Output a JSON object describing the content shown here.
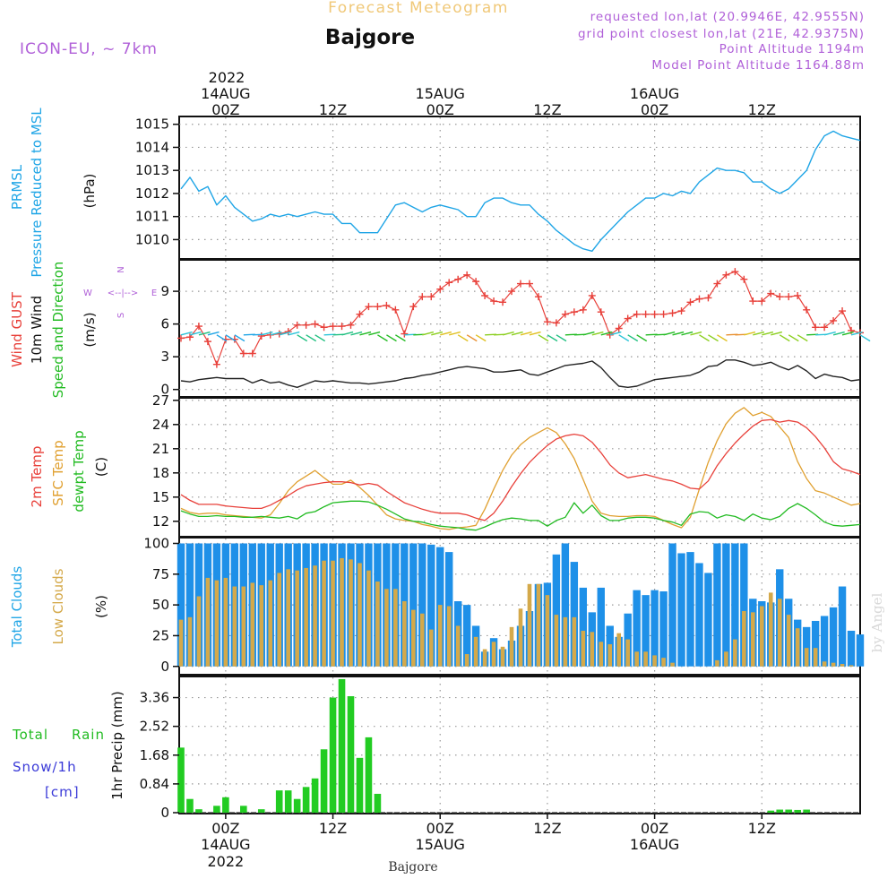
{
  "header": {
    "title": "Forecast Meteogram",
    "location": "Bajgore",
    "model": "ICON-EU, ~ 7km",
    "requested": "requested lon,lat (20.9946E, 42.9555N)",
    "gridpoint": "grid point closest lon,lat (21E, 42.9375N)",
    "point_altitude": "Point Altitude 1194m",
    "model_altitude": "Model Point Altitude 1164.88m",
    "footer_location": "Bajgore",
    "watermark": "by Angel"
  },
  "colors": {
    "pressure": "#1fa5e6",
    "gust": "#e8403a",
    "wind": "#222222",
    "temp": "#e8403a",
    "sfc": "#e0a030",
    "dewpt": "#22bb22",
    "total_clouds": "#1e90e8",
    "low_clouds": "#d4a94a",
    "rain": "#22cc22",
    "snow": "#3a3ad8",
    "title": "#f0c878",
    "meta": "#b060d8"
  },
  "time_axis": {
    "top_year": "2022",
    "top_ticks": [
      {
        "hour": 0,
        "l1": "14AUG",
        "l2": "00Z"
      },
      {
        "hour": 12,
        "l1": "",
        "l2": "12Z"
      },
      {
        "hour": 24,
        "l1": "15AUG",
        "l2": "00Z"
      },
      {
        "hour": 36,
        "l1": "",
        "l2": "12Z"
      },
      {
        "hour": 48,
        "l1": "16AUG",
        "l2": "00Z"
      },
      {
        "hour": 60,
        "l1": "",
        "l2": "12Z"
      }
    ],
    "bottom_ticks": [
      {
        "hour": 0,
        "l1": "00Z",
        "l2": "14AUG",
        "l3": "2022"
      },
      {
        "hour": 12,
        "l1": "12Z",
        "l2": "",
        "l3": ""
      },
      {
        "hour": 24,
        "l1": "00Z",
        "l2": "15AUG",
        "l3": ""
      },
      {
        "hour": 36,
        "l1": "12Z",
        "l2": "",
        "l3": ""
      },
      {
        "hour": 48,
        "l1": "00Z",
        "l2": "16AUG",
        "l3": ""
      },
      {
        "hour": 60,
        "l1": "12Z",
        "l2": "",
        "l3": ""
      }
    ],
    "start_hour": -5.2,
    "end_hour": 71
  },
  "panel_labels": {
    "pressure": {
      "l1": "PRMSL",
      "l2": "Pressure Reduced to MSL",
      "unit": "(hPa)"
    },
    "wind": {
      "l1": "Wind GUST",
      "l2": "10m Wind",
      "l3": "Speed and Direction",
      "unit": "(m/s)",
      "compass_n": "N",
      "compass_s": "S",
      "compass_w": "W",
      "compass_e": "E",
      "compass_row": "<--|-->"
    },
    "temp": {
      "l1": "2m Temp",
      "l2": "SFC Temp",
      "l3": "dewpt Temp",
      "unit": "(C)"
    },
    "clouds": {
      "l1": "Total Clouds",
      "l2": "Low Clouds",
      "unit": "(%)"
    },
    "precip": {
      "l1a": "Total",
      "l1b": "Rain",
      "l2": "Snow/1h",
      "l3": "[cm]",
      "unit": "1hr Precip (mm)"
    }
  },
  "chart_data": [
    {
      "type": "line",
      "name": "pressure",
      "ylim": [
        1009.2,
        1015.3
      ],
      "yticks": [
        "1010",
        "1011",
        "1012",
        "1013",
        "1014",
        "1015"
      ],
      "x": [
        -5,
        -4,
        -3,
        -2,
        -1,
        0,
        1,
        2,
        3,
        4,
        5,
        6,
        7,
        8,
        9,
        10,
        11,
        12,
        13,
        14,
        15,
        16,
        17,
        18,
        19,
        20,
        21,
        22,
        23,
        24,
        25,
        26,
        27,
        28,
        29,
        30,
        31,
        32,
        33,
        34,
        35,
        36,
        37,
        38,
        39,
        40,
        41,
        42,
        43,
        44,
        45,
        46,
        47,
        48,
        49,
        50,
        51,
        52,
        53,
        54,
        55,
        56,
        57,
        58,
        59,
        60,
        61,
        62,
        63,
        64,
        65,
        66,
        67,
        68,
        69,
        70,
        71
      ],
      "values": [
        1012.2,
        1012.7,
        1012.1,
        1012.3,
        1011.5,
        1011.9,
        1011.4,
        1011.1,
        1010.8,
        1010.9,
        1011.1,
        1011.0,
        1011.1,
        1011.0,
        1011.1,
        1011.2,
        1011.1,
        1011.1,
        1010.7,
        1010.7,
        1010.3,
        1010.3,
        1010.3,
        1010.9,
        1011.5,
        1011.6,
        1011.4,
        1011.2,
        1011.4,
        1011.5,
        1011.4,
        1011.3,
        1011.0,
        1011.0,
        1011.6,
        1011.8,
        1011.8,
        1011.6,
        1011.5,
        1011.5,
        1011.1,
        1010.8,
        1010.4,
        1010.1,
        1009.8,
        1009.6,
        1009.5,
        1010.0,
        1010.4,
        1010.8,
        1011.2,
        1011.5,
        1011.8,
        1011.8,
        1012.0,
        1011.9,
        1012.1,
        1012.0,
        1012.5,
        1012.8,
        1013.1,
        1013.0,
        1013.0,
        1012.9,
        1012.5,
        1012.5,
        1012.2,
        1012.0,
        1012.2,
        1012.6,
        1013.0,
        1013.9,
        1014.5,
        1014.7,
        1014.5,
        1014.4,
        1014.3
      ]
    },
    {
      "type": "line",
      "name": "wind",
      "ylim": [
        -0.6,
        11.8
      ],
      "yticks": [
        "0",
        "3",
        "6",
        "9"
      ],
      "x": [
        -5,
        -4,
        -3,
        -2,
        -1,
        0,
        1,
        2,
        3,
        4,
        5,
        6,
        7,
        8,
        9,
        10,
        11,
        12,
        13,
        14,
        15,
        16,
        17,
        18,
        19,
        20,
        21,
        22,
        23,
        24,
        25,
        26,
        27,
        28,
        29,
        30,
        31,
        32,
        33,
        34,
        35,
        36,
        37,
        38,
        39,
        40,
        41,
        42,
        43,
        44,
        45,
        46,
        47,
        48,
        49,
        50,
        51,
        52,
        53,
        54,
        55,
        56,
        57,
        58,
        59,
        60,
        61,
        62,
        63,
        64,
        65,
        66,
        67,
        68,
        69,
        70,
        71
      ],
      "gust": [
        4.7,
        4.8,
        5.8,
        4.4,
        2.3,
        4.6,
        4.6,
        3.3,
        3.3,
        4.9,
        5.0,
        5.1,
        5.3,
        5.9,
        5.9,
        6.0,
        5.7,
        5.8,
        5.8,
        5.9,
        6.9,
        7.6,
        7.6,
        7.7,
        7.3,
        5.1,
        7.6,
        8.5,
        8.5,
        9.2,
        9.8,
        10.1,
        10.5,
        9.9,
        8.6,
        8.1,
        8.0,
        9.0,
        9.7,
        9.7,
        8.5,
        6.2,
        6.1,
        6.9,
        7.1,
        7.3,
        8.6,
        7.1,
        5.0,
        5.6,
        6.5,
        6.9,
        6.9,
        6.9,
        6.9,
        7.0,
        7.2,
        8.0,
        8.3,
        8.4,
        9.7,
        10.5,
        10.8,
        10.1,
        8.1,
        8.1,
        8.8,
        8.5,
        8.5,
        8.6,
        7.3,
        5.7,
        5.7,
        6.3,
        7.2,
        5.4,
        5.2
      ],
      "speed": [
        0.8,
        0.7,
        0.9,
        1.0,
        1.1,
        1.0,
        1.0,
        1.0,
        0.6,
        0.9,
        0.6,
        0.7,
        0.4,
        0.2,
        0.5,
        0.8,
        0.7,
        0.8,
        0.7,
        0.6,
        0.6,
        0.5,
        0.6,
        0.7,
        0.8,
        1.0,
        1.1,
        1.3,
        1.4,
        1.6,
        1.8,
        2.0,
        2.1,
        2.0,
        1.9,
        1.6,
        1.6,
        1.7,
        1.8,
        1.4,
        1.3,
        1.6,
        1.9,
        2.2,
        2.3,
        2.4,
        2.6,
        2.0,
        1.1,
        0.3,
        0.2,
        0.3,
        0.6,
        0.9,
        1.0,
        1.1,
        1.2,
        1.3,
        1.6,
        2.1,
        2.2,
        2.7,
        2.7,
        2.5,
        2.2,
        2.3,
        2.5,
        2.1,
        1.8,
        2.2,
        1.7,
        1.0,
        1.4,
        1.2,
        1.1,
        0.8,
        0.9
      ]
    },
    {
      "type": "line",
      "name": "temperature",
      "ylim": [
        10.2,
        27.2
      ],
      "yticks": [
        "12",
        "15",
        "18",
        "21",
        "24",
        "27"
      ],
      "x": [
        -5,
        -4,
        -3,
        -2,
        -1,
        0,
        1,
        2,
        3,
        4,
        5,
        6,
        7,
        8,
        9,
        10,
        11,
        12,
        13,
        14,
        15,
        16,
        17,
        18,
        19,
        20,
        21,
        22,
        23,
        24,
        25,
        26,
        27,
        28,
        29,
        30,
        31,
        32,
        33,
        34,
        35,
        36,
        37,
        38,
        39,
        40,
        41,
        42,
        43,
        44,
        45,
        46,
        47,
        48,
        49,
        50,
        51,
        52,
        53,
        54,
        55,
        56,
        57,
        58,
        59,
        60,
        61,
        62,
        63,
        64,
        65,
        66,
        67,
        68,
        69,
        70,
        71
      ],
      "temp_2m": [
        15.3,
        14.6,
        14.1,
        14.1,
        14.1,
        13.9,
        13.8,
        13.7,
        13.6,
        13.6,
        14.0,
        14.6,
        15.2,
        15.9,
        16.4,
        16.6,
        16.8,
        16.9,
        16.9,
        16.8,
        16.5,
        16.7,
        16.5,
        15.7,
        15.0,
        14.3,
        13.9,
        13.5,
        13.2,
        13.0,
        13.0,
        13.0,
        12.8,
        12.4,
        12.1,
        13.0,
        14.5,
        16.3,
        17.9,
        19.3,
        20.4,
        21.4,
        22.2,
        22.6,
        22.8,
        22.6,
        21.8,
        20.5,
        19.0,
        18.0,
        17.4,
        17.6,
        17.8,
        17.5,
        17.2,
        17.0,
        16.6,
        16.1,
        16.0,
        17.0,
        18.9,
        20.4,
        21.7,
        22.8,
        23.8,
        24.5,
        24.6,
        24.3,
        24.5,
        24.3,
        23.6,
        22.5,
        21.1,
        19.4,
        18.5,
        18.2,
        17.8
      ],
      "sfc": [
        13.6,
        13.1,
        12.9,
        13.0,
        13.0,
        12.8,
        12.7,
        12.6,
        12.5,
        12.4,
        12.8,
        14.2,
        15.8,
        16.9,
        17.6,
        18.3,
        17.4,
        16.6,
        16.6,
        17.1,
        16.2,
        15.2,
        14.0,
        12.8,
        12.3,
        12.1,
        12.0,
        11.6,
        11.4,
        11.1,
        11.0,
        11.2,
        11.3,
        11.5,
        13.5,
        16.0,
        18.3,
        20.2,
        21.5,
        22.4,
        23.0,
        23.6,
        23.0,
        21.6,
        19.8,
        17.2,
        14.5,
        13.0,
        12.7,
        12.6,
        12.6,
        12.7,
        12.7,
        12.6,
        12.1,
        11.6,
        11.2,
        12.5,
        16.0,
        19.3,
        22.0,
        24.1,
        25.4,
        26.1,
        25.1,
        25.5,
        25.0,
        23.7,
        22.4,
        19.4,
        17.3,
        15.8,
        15.5,
        15.0,
        14.5,
        14.0,
        14.2
      ],
      "dewpt": [
        13.3,
        12.9,
        12.6,
        12.6,
        12.7,
        12.6,
        12.6,
        12.5,
        12.5,
        12.6,
        12.5,
        12.4,
        12.6,
        12.3,
        13.0,
        13.2,
        13.8,
        14.3,
        14.4,
        14.5,
        14.5,
        14.4,
        14.0,
        13.5,
        12.9,
        12.3,
        12.0,
        11.9,
        11.6,
        11.4,
        11.3,
        11.2,
        11.0,
        10.9,
        11.3,
        11.8,
        12.2,
        12.4,
        12.3,
        12.1,
        12.1,
        11.4,
        12.1,
        12.5,
        14.3,
        13.0,
        14.0,
        12.7,
        12.1,
        12.1,
        12.4,
        12.5,
        12.5,
        12.4,
        12.1,
        11.9,
        11.5,
        12.9,
        13.2,
        13.1,
        12.4,
        12.8,
        12.6,
        12.1,
        12.9,
        12.4,
        12.2,
        12.6,
        13.6,
        14.2,
        13.6,
        12.8,
        11.9,
        11.5,
        11.4,
        11.5,
        11.6
      ]
    },
    {
      "type": "bar",
      "name": "clouds",
      "ylim": [
        -6,
        104
      ],
      "yticks": [
        "0",
        "25",
        "50",
        "75",
        "100"
      ],
      "x": [
        -5,
        -4,
        -3,
        -2,
        -1,
        0,
        1,
        2,
        3,
        4,
        5,
        6,
        7,
        8,
        9,
        10,
        11,
        12,
        13,
        14,
        15,
        16,
        17,
        18,
        19,
        20,
        21,
        22,
        23,
        24,
        25,
        26,
        27,
        28,
        29,
        30,
        31,
        32,
        33,
        34,
        35,
        36,
        37,
        38,
        39,
        40,
        41,
        42,
        43,
        44,
        45,
        46,
        47,
        48,
        49,
        50,
        51,
        52,
        53,
        54,
        55,
        56,
        57,
        58,
        59,
        60,
        61,
        62,
        63,
        64,
        65,
        66,
        67,
        68,
        69,
        70,
        71
      ],
      "total": [
        100,
        100,
        100,
        100,
        100,
        100,
        100,
        100,
        100,
        100,
        100,
        100,
        100,
        100,
        100,
        100,
        100,
        100,
        100,
        100,
        100,
        100,
        100,
        100,
        100,
        100,
        100,
        100,
        99,
        97,
        93,
        53,
        50,
        33,
        12,
        23,
        14,
        21,
        33,
        45,
        67,
        68,
        91,
        100,
        85,
        64,
        44,
        64,
        33,
        24,
        43,
        62,
        58,
        62,
        61,
        100,
        92,
        93,
        84,
        76,
        100,
        100,
        100,
        100,
        55,
        53,
        52,
        79,
        55,
        38,
        32,
        37,
        41,
        48,
        65,
        29,
        26
      ],
      "low": [
        38,
        40,
        57,
        72,
        70,
        72,
        65,
        65,
        68,
        66,
        70,
        76,
        79,
        78,
        80,
        82,
        86,
        86,
        88,
        87,
        84,
        78,
        69,
        63,
        63,
        53,
        46,
        43,
        30,
        50,
        49,
        33,
        10,
        24,
        14,
        20,
        16,
        32,
        47,
        67,
        67,
        58,
        42,
        40,
        40,
        29,
        28,
        20,
        18,
        27,
        22,
        12,
        12,
        9,
        7,
        3,
        0,
        0,
        0,
        0,
        5,
        12,
        22,
        45,
        44,
        49,
        60,
        55,
        42,
        31,
        15,
        15,
        4,
        3,
        2,
        1,
        0
      ]
    },
    {
      "type": "bar",
      "name": "precipitation",
      "ylim": [
        0,
        3.95
      ],
      "yticks": [
        "0",
        "0.84",
        "1.68",
        "2.52",
        "3.36"
      ],
      "x": [
        -5,
        -4,
        -3,
        -2,
        -1,
        0,
        1,
        2,
        3,
        4,
        5,
        6,
        7,
        8,
        9,
        10,
        11,
        12,
        13,
        14,
        15,
        16,
        17,
        18,
        19,
        20,
        21,
        22,
        23,
        24,
        25,
        26,
        27,
        28,
        29,
        30,
        31,
        32,
        33,
        34,
        35,
        36,
        37,
        38,
        39,
        40,
        41,
        42,
        43,
        44,
        45,
        46,
        47,
        48,
        49,
        50,
        51,
        52,
        53,
        54,
        55,
        56,
        57,
        58,
        59,
        60,
        61,
        62,
        63,
        64,
        65,
        66,
        67,
        68,
        69,
        70,
        71
      ],
      "rain": [
        1.9,
        0.4,
        0.1,
        0,
        0.2,
        0.45,
        0,
        0.2,
        0,
        0.1,
        0,
        0.65,
        0.65,
        0.4,
        0.75,
        1.0,
        1.85,
        3.36,
        3.9,
        3.4,
        1.6,
        2.2,
        0.55,
        0,
        0,
        0,
        0,
        0,
        0,
        0,
        0,
        0,
        0,
        0,
        0,
        0,
        0,
        0,
        0,
        0,
        0,
        0,
        0,
        0,
        0,
        0,
        0,
        0,
        0,
        0,
        0,
        0,
        0,
        0,
        0,
        0,
        0,
        0,
        0,
        0,
        0,
        0,
        0,
        0,
        0,
        0,
        0.06,
        0.09,
        0.09,
        0.08,
        0.09,
        0,
        0,
        0,
        0,
        0,
        0
      ],
      "snow": [
        0,
        0,
        0,
        0,
        0,
        0,
        0,
        0,
        0,
        0,
        0,
        0,
        0,
        0,
        0,
        0,
        0,
        0,
        0,
        0,
        0,
        0,
        0,
        0,
        0,
        0,
        0,
        0,
        0,
        0,
        0,
        0,
        0,
        0,
        0,
        0,
        0,
        0,
        0,
        0,
        0,
        0,
        0,
        0,
        0,
        0,
        0,
        0,
        0,
        0,
        0,
        0,
        0,
        0,
        0,
        0,
        0,
        0,
        0,
        0,
        0,
        0,
        0,
        0,
        0,
        0,
        0,
        0,
        0,
        0,
        0,
        0,
        0,
        0,
        0,
        0,
        0
      ]
    }
  ]
}
